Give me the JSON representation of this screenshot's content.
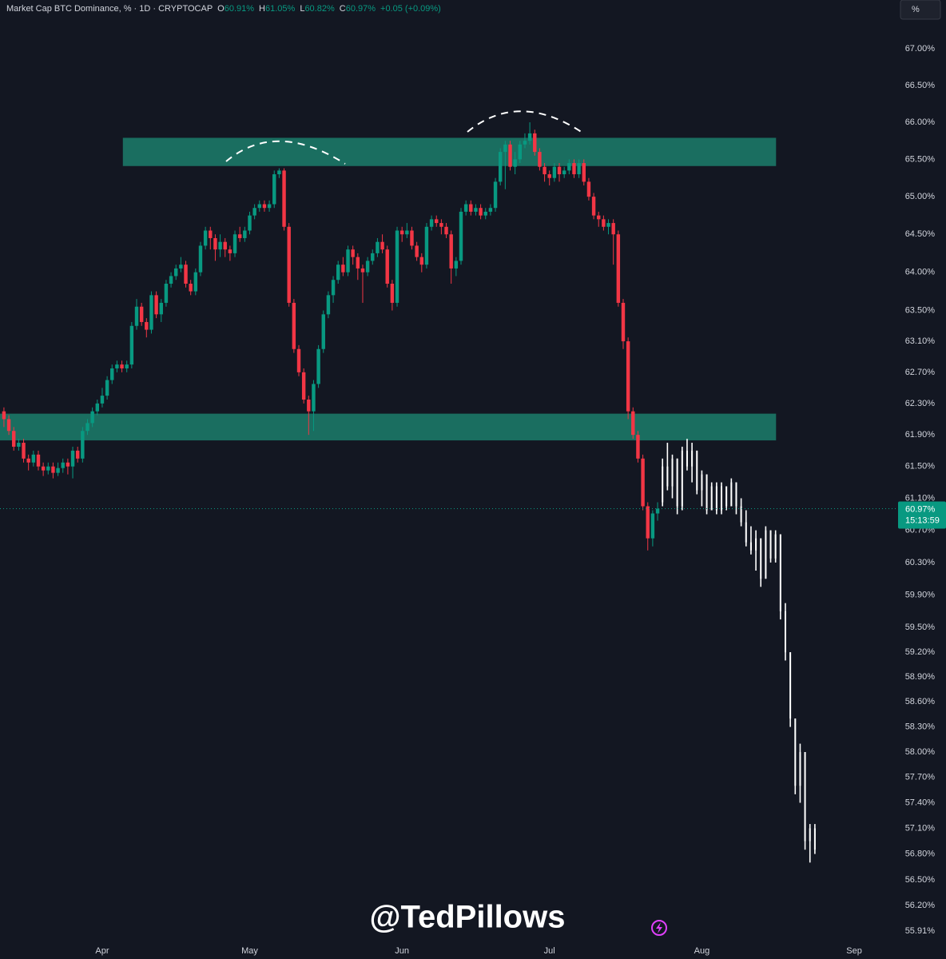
{
  "chart_data": {
    "type": "candlestick",
    "header": {
      "title": "Market Cap BTC Dominance, % · 1D · CRYPTOCAP",
      "keys": [
        "O",
        "H",
        "L",
        "C"
      ],
      "values": [
        "60.91%",
        "61.05%",
        "60.82%",
        "60.97%"
      ],
      "change": "+0.05 (+0.09%)"
    },
    "scale_button": "%",
    "watermark": "@TedPillows",
    "log_scale": true,
    "grid": false,
    "xlim": [
      -20.8,
      161.6
    ],
    "xticks": [
      {
        "value": 0,
        "label": "Apr"
      },
      {
        "value": 30,
        "label": "May"
      },
      {
        "value": 61,
        "label": "Jun"
      },
      {
        "value": 91,
        "label": "Jul"
      },
      {
        "value": 122,
        "label": "Aug"
      },
      {
        "value": 153,
        "label": "Sep"
      }
    ],
    "ylim": [
      55.79,
      67.4
    ],
    "yticks": [
      {
        "value": 67,
        "label": "67.00%"
      },
      {
        "value": 66.5,
        "label": "66.50%"
      },
      {
        "value": 66,
        "label": "66.00%"
      },
      {
        "value": 65.5,
        "label": "65.50%"
      },
      {
        "value": 65,
        "label": "65.00%"
      },
      {
        "value": 64.5,
        "label": "64.50%"
      },
      {
        "value": 64,
        "label": "64.00%"
      },
      {
        "value": 63.5,
        "label": "63.50%"
      },
      {
        "value": 63.1,
        "label": "63.10%"
      },
      {
        "value": 62.7,
        "label": "62.70%"
      },
      {
        "value": 62.3,
        "label": "62.30%"
      },
      {
        "value": 61.9,
        "label": "61.90%"
      },
      {
        "value": 61.5,
        "label": "61.50%"
      },
      {
        "value": 61.1,
        "label": "61.10%"
      },
      {
        "value": 60.7,
        "label": "60.70%"
      },
      {
        "value": 60.3,
        "label": "60.30%"
      },
      {
        "value": 59.9,
        "label": "59.90%"
      },
      {
        "value": 59.5,
        "label": "59.50%"
      },
      {
        "value": 59.2,
        "label": "59.20%"
      },
      {
        "value": 58.9,
        "label": "58.90%"
      },
      {
        "value": 58.6,
        "label": "58.60%"
      },
      {
        "value": 58.3,
        "label": "58.30%"
      },
      {
        "value": 58,
        "label": "58.00%"
      },
      {
        "value": 57.7,
        "label": "57.70%"
      },
      {
        "value": 57.4,
        "label": "57.40%"
      },
      {
        "value": 57.1,
        "label": "57.10%"
      },
      {
        "value": 56.8,
        "label": "56.80%"
      },
      {
        "value": 56.5,
        "label": "56.50%"
      },
      {
        "value": 56.2,
        "label": "56.20%"
      },
      {
        "value": 55.91,
        "label": "55.91%"
      }
    ],
    "zone_color": "#1a6e60",
    "zones": [
      {
        "x": [
          4.2,
          137.1
        ],
        "y": [
          65.41,
          65.79
        ]
      },
      {
        "x": [
          -20.8,
          137.1
        ],
        "y": [
          61.83,
          62.17
        ]
      }
    ],
    "last_price": {
      "value": 60.97,
      "label": "60.97%"
    },
    "countdown": "15:13:59",
    "series": [
      {
        "color_up": "#089981",
        "color_down": "#f23645",
        "x": [
          -20,
          -19,
          -18,
          -17,
          -16,
          -15,
          -14,
          -13,
          -12,
          -11,
          -10,
          -9,
          -8,
          -7,
          -6,
          -5,
          -4,
          -3,
          -2,
          -1,
          0,
          1,
          2,
          3,
          4,
          5,
          6,
          7,
          8,
          9,
          10,
          11,
          12,
          13,
          14,
          15,
          16,
          17,
          18,
          19,
          20,
          21,
          22,
          23,
          24,
          25,
          26,
          27,
          28,
          29,
          30,
          31,
          32,
          33,
          34,
          35,
          36,
          37,
          38,
          39,
          40,
          41,
          42,
          43,
          44,
          45,
          46,
          47,
          48,
          49,
          50,
          51,
          52,
          53,
          54,
          55,
          56,
          57,
          58,
          59,
          60,
          61,
          62,
          63,
          64,
          65,
          66,
          67,
          68,
          69,
          70,
          71,
          72,
          73,
          74,
          75,
          76,
          77,
          78,
          79,
          80,
          81,
          82,
          83,
          84,
          85,
          86,
          87,
          88,
          89,
          90,
          91,
          92,
          93,
          94,
          95,
          96,
          97,
          98,
          99,
          100,
          101,
          102,
          103,
          104,
          105,
          106,
          107,
          108,
          109,
          110,
          111,
          112,
          113
        ],
        "open": [
          62.2,
          62.1,
          61.95,
          61.75,
          61.8,
          61.6,
          61.55,
          61.65,
          61.5,
          61.45,
          61.5,
          61.42,
          61.48,
          61.55,
          61.5,
          61.7,
          61.6,
          61.95,
          62.05,
          62.2,
          62.3,
          62.4,
          62.6,
          62.75,
          62.8,
          62.75,
          62.8,
          63.3,
          63.55,
          63.35,
          63.25,
          63.7,
          63.45,
          63.6,
          63.85,
          63.95,
          64.05,
          64.1,
          63.85,
          63.75,
          64.0,
          64.35,
          64.55,
          64.45,
          64.3,
          64.4,
          64.3,
          64.25,
          64.5,
          64.45,
          64.55,
          64.75,
          64.85,
          64.9,
          64.85,
          64.9,
          65.3,
          65.35,
          64.6,
          63.6,
          63.0,
          62.7,
          62.35,
          62.2,
          62.55,
          63.0,
          63.45,
          63.7,
          63.9,
          64.1,
          64.0,
          64.3,
          64.2,
          64.05,
          64.0,
          64.15,
          64.25,
          64.4,
          64.3,
          63.85,
          63.6,
          64.55,
          64.5,
          64.55,
          64.35,
          64.2,
          64.1,
          64.6,
          64.7,
          64.65,
          64.6,
          64.5,
          64.05,
          64.15,
          64.8,
          64.9,
          64.8,
          64.85,
          64.75,
          64.8,
          64.85,
          65.2,
          65.6,
          65.7,
          65.4,
          65.5,
          65.7,
          65.75,
          65.85,
          65.6,
          65.4,
          65.3,
          65.25,
          65.4,
          65.3,
          65.35,
          65.45,
          65.3,
          65.45,
          65.2,
          65.0,
          64.75,
          64.7,
          64.6,
          64.65,
          64.5,
          63.6,
          63.1,
          62.2,
          61.9,
          61.6,
          61.0,
          60.6,
          60.91
        ],
        "high": [
          62.25,
          62.15,
          62.0,
          61.85,
          61.85,
          61.65,
          61.7,
          61.7,
          61.55,
          61.55,
          61.55,
          61.55,
          61.6,
          61.6,
          61.75,
          61.75,
          62.0,
          62.1,
          62.25,
          62.35,
          62.5,
          62.65,
          62.8,
          62.85,
          62.85,
          62.85,
          63.35,
          63.65,
          63.6,
          63.4,
          63.75,
          63.75,
          63.65,
          63.9,
          64.0,
          64.1,
          64.2,
          64.15,
          63.9,
          64.05,
          64.4,
          64.6,
          64.6,
          64.5,
          64.5,
          64.45,
          64.35,
          64.55,
          64.6,
          64.6,
          64.8,
          64.9,
          64.95,
          64.95,
          64.95,
          65.35,
          65.38,
          65.38,
          64.65,
          63.65,
          63.05,
          62.75,
          62.4,
          62.6,
          63.05,
          63.5,
          63.75,
          63.95,
          64.15,
          64.2,
          64.35,
          64.35,
          64.25,
          64.1,
          64.2,
          64.3,
          64.45,
          64.5,
          64.35,
          63.9,
          64.6,
          64.6,
          64.65,
          64.6,
          64.4,
          64.25,
          64.65,
          64.75,
          64.75,
          64.7,
          64.65,
          64.55,
          64.2,
          64.85,
          64.95,
          64.95,
          64.9,
          64.9,
          64.85,
          64.9,
          65.25,
          65.65,
          65.75,
          65.75,
          65.6,
          65.75,
          65.85,
          66.0,
          65.9,
          65.65,
          65.45,
          65.35,
          65.45,
          65.45,
          65.4,
          65.5,
          65.5,
          65.5,
          65.5,
          65.25,
          65.05,
          64.8,
          64.75,
          64.7,
          64.7,
          64.55,
          63.65,
          63.15,
          62.25,
          61.95,
          61.65,
          61.05,
          60.95,
          61.05
        ],
        "low": [
          62.0,
          61.9,
          61.7,
          61.7,
          61.55,
          61.45,
          61.5,
          61.45,
          61.38,
          61.4,
          61.35,
          61.38,
          61.42,
          61.4,
          61.35,
          61.55,
          61.55,
          61.9,
          62.0,
          62.15,
          62.25,
          62.35,
          62.55,
          62.7,
          62.7,
          62.7,
          62.75,
          63.25,
          63.3,
          63.15,
          63.2,
          63.4,
          63.35,
          63.55,
          63.8,
          63.9,
          64.0,
          63.8,
          63.7,
          63.7,
          63.95,
          64.3,
          64.3,
          64.15,
          64.2,
          64.2,
          64.15,
          64.2,
          64.4,
          64.4,
          64.5,
          64.7,
          64.8,
          64.8,
          64.8,
          64.85,
          65.25,
          64.55,
          63.55,
          62.95,
          62.65,
          62.3,
          61.9,
          61.95,
          62.5,
          62.95,
          63.4,
          63.6,
          63.85,
          63.95,
          63.95,
          64.1,
          63.9,
          63.6,
          63.95,
          64.1,
          64.2,
          64.25,
          63.8,
          63.5,
          63.55,
          64.4,
          64.45,
          64.3,
          64.15,
          64.0,
          64.05,
          64.55,
          64.6,
          64.5,
          64.45,
          63.85,
          63.95,
          64.1,
          64.75,
          64.75,
          64.75,
          64.7,
          64.7,
          64.75,
          64.8,
          65.15,
          65.1,
          65.35,
          65.3,
          65.45,
          65.65,
          65.7,
          65.55,
          65.35,
          65.2,
          65.15,
          65.2,
          65.2,
          65.25,
          65.3,
          65.25,
          65.25,
          65.15,
          64.95,
          64.7,
          64.6,
          64.55,
          64.5,
          64.1,
          63.55,
          63.0,
          62.1,
          61.85,
          61.55,
          60.95,
          60.45,
          60.5,
          60.82
        ],
        "close": [
          62.1,
          61.95,
          61.75,
          61.8,
          61.6,
          61.55,
          61.65,
          61.5,
          61.45,
          61.5,
          61.42,
          61.48,
          61.55,
          61.5,
          61.7,
          61.6,
          61.95,
          62.05,
          62.2,
          62.3,
          62.4,
          62.6,
          62.75,
          62.8,
          62.75,
          62.8,
          63.3,
          63.55,
          63.35,
          63.25,
          63.7,
          63.45,
          63.6,
          63.85,
          63.95,
          64.05,
          64.1,
          63.85,
          63.75,
          64.0,
          64.35,
          64.55,
          64.45,
          64.3,
          64.4,
          64.3,
          64.25,
          64.5,
          64.45,
          64.55,
          64.75,
          64.85,
          64.9,
          64.85,
          64.9,
          65.3,
          65.35,
          64.6,
          63.6,
          63.0,
          62.7,
          62.35,
          62.2,
          62.55,
          63.0,
          63.45,
          63.7,
          63.9,
          64.1,
          64.0,
          64.3,
          64.2,
          64.05,
          64.0,
          64.15,
          64.25,
          64.4,
          64.3,
          63.85,
          63.6,
          64.55,
          64.5,
          64.55,
          64.35,
          64.2,
          64.1,
          64.6,
          64.7,
          64.65,
          64.6,
          64.5,
          64.05,
          64.15,
          64.8,
          64.9,
          64.8,
          64.85,
          64.75,
          64.8,
          64.85,
          65.2,
          65.6,
          65.7,
          65.4,
          65.5,
          65.7,
          65.75,
          65.85,
          65.6,
          65.4,
          65.3,
          65.25,
          65.4,
          65.3,
          65.35,
          65.45,
          65.3,
          65.45,
          65.2,
          65.0,
          64.75,
          64.7,
          64.6,
          64.65,
          64.5,
          63.6,
          63.1,
          62.2,
          61.9,
          61.6,
          61.0,
          60.6,
          60.91,
          60.97
        ]
      },
      {
        "color": "#ffffff",
        "x": [
          114,
          115,
          116,
          117,
          118,
          119,
          120,
          121,
          122,
          123,
          124,
          125,
          126,
          127,
          128,
          129,
          130,
          131,
          132,
          133,
          134,
          135,
          136,
          137,
          138,
          139,
          140,
          141,
          142,
          143,
          144,
          145
        ],
        "open": [
          61.05,
          61.5,
          61.25,
          61.6,
          61.0,
          61.7,
          61.5,
          61.7,
          61.2,
          61.4,
          60.95,
          61.25,
          60.95,
          61.25,
          61.0,
          61.3,
          61.0,
          60.8,
          60.55,
          60.45,
          60.6,
          60.1,
          60.7,
          60.35,
          60.65,
          59.7,
          59.2,
          58.4,
          57.6,
          58.0,
          56.95,
          57.1
        ],
        "high": [
          61.6,
          61.8,
          61.65,
          61.6,
          61.75,
          61.85,
          61.8,
          61.7,
          61.45,
          61.4,
          61.3,
          61.3,
          61.3,
          61.25,
          61.35,
          61.3,
          61.1,
          60.95,
          60.75,
          60.7,
          60.6,
          60.75,
          60.7,
          60.7,
          60.65,
          59.8,
          59.2,
          58.4,
          58.1,
          58.0,
          57.15,
          57.15
        ],
        "low": [
          61.0,
          61.2,
          61.1,
          60.9,
          60.95,
          61.45,
          61.3,
          61.15,
          61.0,
          60.9,
          60.95,
          60.9,
          60.9,
          60.95,
          61.0,
          60.9,
          60.75,
          60.5,
          60.4,
          60.2,
          60.0,
          60.1,
          60.3,
          60.3,
          59.6,
          59.1,
          58.3,
          57.5,
          57.4,
          56.85,
          56.7,
          56.8
        ],
        "close": [
          61.5,
          61.25,
          61.6,
          61.0,
          61.7,
          61.5,
          61.7,
          61.2,
          61.4,
          60.95,
          61.25,
          60.95,
          61.25,
          61.0,
          61.3,
          61.0,
          60.8,
          60.55,
          60.45,
          60.6,
          60.1,
          60.7,
          60.35,
          60.65,
          59.7,
          59.2,
          58.4,
          57.6,
          58.0,
          56.95,
          57.1,
          56.85
        ]
      }
    ]
  }
}
